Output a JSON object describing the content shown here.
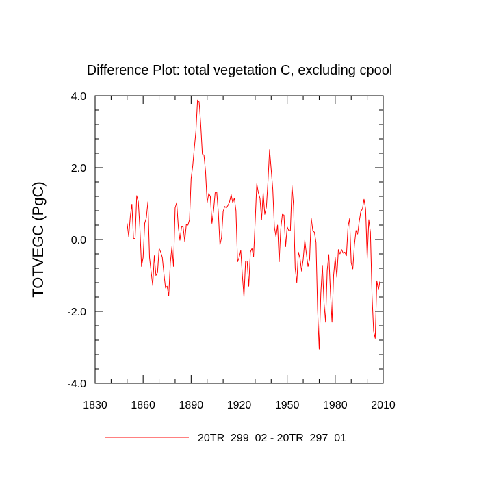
{
  "chart_data": {
    "type": "line",
    "title": "Difference Plot: total vegetation C, excluding cpool",
    "xlabel": "",
    "ylabel": "TOTVEGC  (PgC)",
    "xlim": [
      1830,
      2010
    ],
    "ylim": [
      -4.0,
      4.0
    ],
    "x_ticks": [
      1830,
      1860,
      1890,
      1920,
      1950,
      1980,
      2010
    ],
    "x_tick_labels": [
      "1830",
      "1860",
      "1890",
      "1920",
      "1950",
      "1980",
      "2010"
    ],
    "y_ticks": [
      -4.0,
      -2.0,
      0.0,
      2.0,
      4.0
    ],
    "y_tick_labels": [
      "-4.0",
      "-2.0",
      "0.0",
      "2.0",
      "4.0"
    ],
    "grid": false,
    "legend_position": "bottom-center",
    "colors": {
      "series": "#ff0000",
      "axis": "#000000",
      "background": "#ffffff"
    },
    "series": [
      {
        "name": "20TR_299_02 - 20TR_297_01",
        "x_start": 1850,
        "x_step": 1,
        "values": [
          0.45,
          0.08,
          0.65,
          0.98,
          0.02,
          0.03,
          1.22,
          1.05,
          0.3,
          -0.75,
          -0.5,
          0.45,
          0.6,
          1.05,
          -0.5,
          -0.9,
          -1.28,
          -0.45,
          -1.0,
          -0.92,
          -0.25,
          -0.35,
          -0.5,
          -0.95,
          -1.35,
          -1.3,
          -1.57,
          -0.65,
          -0.2,
          -0.75,
          0.88,
          1.03,
          0.35,
          -0.02,
          0.35,
          0.35,
          -0.05,
          0.42,
          0.4,
          0.55,
          1.7,
          2.05,
          2.55,
          3.02,
          3.88,
          3.83,
          3.2,
          2.38,
          2.35,
          1.9,
          1.02,
          1.28,
          1.2,
          0.45,
          0.8,
          1.3,
          1.32,
          0.75,
          -0.15,
          0.05,
          0.78,
          0.92,
          0.88,
          0.95,
          1.05,
          1.25,
          1.02,
          1.15,
          0.8,
          -0.62,
          -0.5,
          -0.3,
          -1.0,
          -1.6,
          -0.6,
          -0.6,
          -1.3,
          -0.35,
          -0.25,
          -0.48,
          0.5,
          1.55,
          1.3,
          1.15,
          0.55,
          1.3,
          0.7,
          0.9,
          1.62,
          2.5,
          1.95,
          1.4,
          0.35,
          0.08,
          0.4,
          -0.62,
          0.3,
          0.7,
          0.68,
          -0.2,
          0.35,
          0.25,
          0.25,
          1.5,
          0.92,
          -0.8,
          -1.2,
          -0.35,
          -0.52,
          -0.88,
          -0.55,
          -0.02,
          -0.4,
          -0.75,
          -0.55,
          0.6,
          0.25,
          0.2,
          -0.08,
          -1.95,
          -3.05,
          -1.5,
          -0.72,
          -1.75,
          -2.3,
          -0.85,
          -0.42,
          -1.45,
          -2.3,
          -1.0,
          -0.5,
          -1.05,
          -0.28,
          -0.4,
          -0.28,
          -0.38,
          -0.35,
          -0.45,
          0.35,
          0.58,
          -0.65,
          -0.82,
          -0.15,
          0.25,
          0.15,
          0.5,
          0.78,
          0.85,
          1.12,
          0.85,
          -0.52,
          0.55,
          0.2,
          -1.55,
          -2.55,
          -2.75,
          -1.15,
          -1.4,
          -1.15
        ]
      }
    ]
  }
}
